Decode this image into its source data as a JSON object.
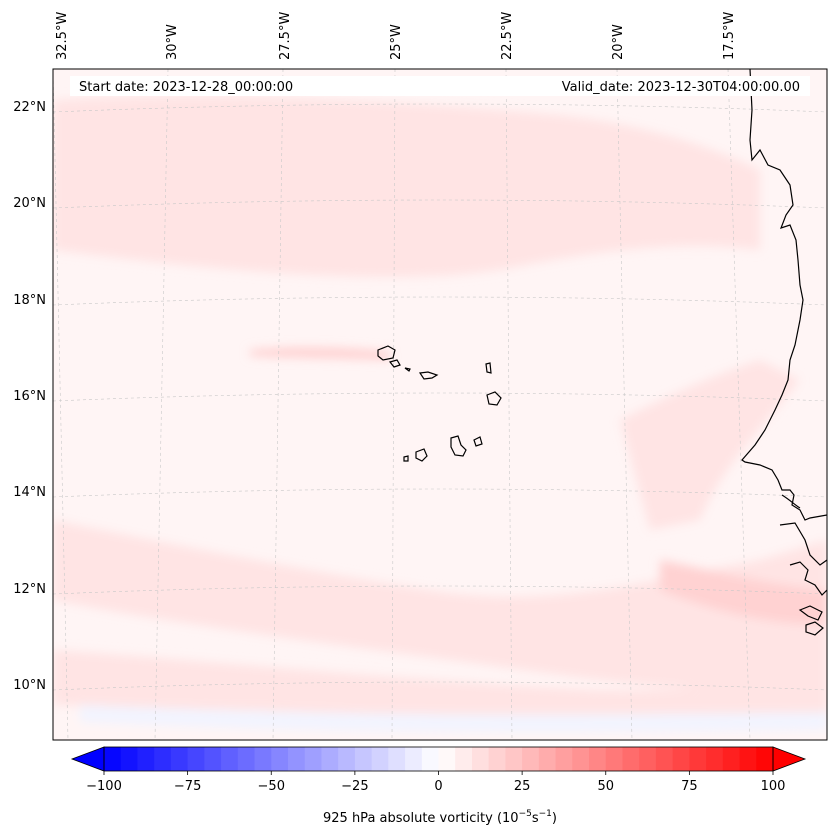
{
  "map": {
    "start_label": "Start date: 2023-12-28_00:00:00",
    "valid_label": "Valid_date: 2023-12-30T04:00:00.00",
    "lon_labels": [
      "32.5°W",
      "30°W",
      "27.5°W",
      "25°W",
      "22.5°W",
      "20°W",
      "17.5°W"
    ],
    "lat_labels": [
      "22°N",
      "20°N",
      "18°N",
      "16°N",
      "14°N",
      "12°N",
      "10°N"
    ],
    "gridlines": true,
    "colors": {
      "background_field": "#fff5f5",
      "light_positive": "#ffe4e4",
      "moderate_positive": "#ffd2d2",
      "light_negative": "#f2f4ff",
      "coastline": "#000000",
      "gridline": "#c8c8c8"
    }
  },
  "colorbar": {
    "label_prefix": "925 hPa absolute vorticity (10",
    "label_exp1": "−5",
    "label_mid": "s",
    "label_exp2": "−1",
    "label_suffix": ")",
    "range": [
      -100,
      100
    ],
    "ticks": [
      "−100",
      "−75",
      "−50",
      "−25",
      "0",
      "25",
      "50",
      "75",
      "100"
    ],
    "tick_values": [
      -100,
      -75,
      -50,
      -25,
      0,
      25,
      50,
      75,
      100
    ],
    "extend": "both",
    "cmap": "bwr",
    "levels": 41
  }
}
